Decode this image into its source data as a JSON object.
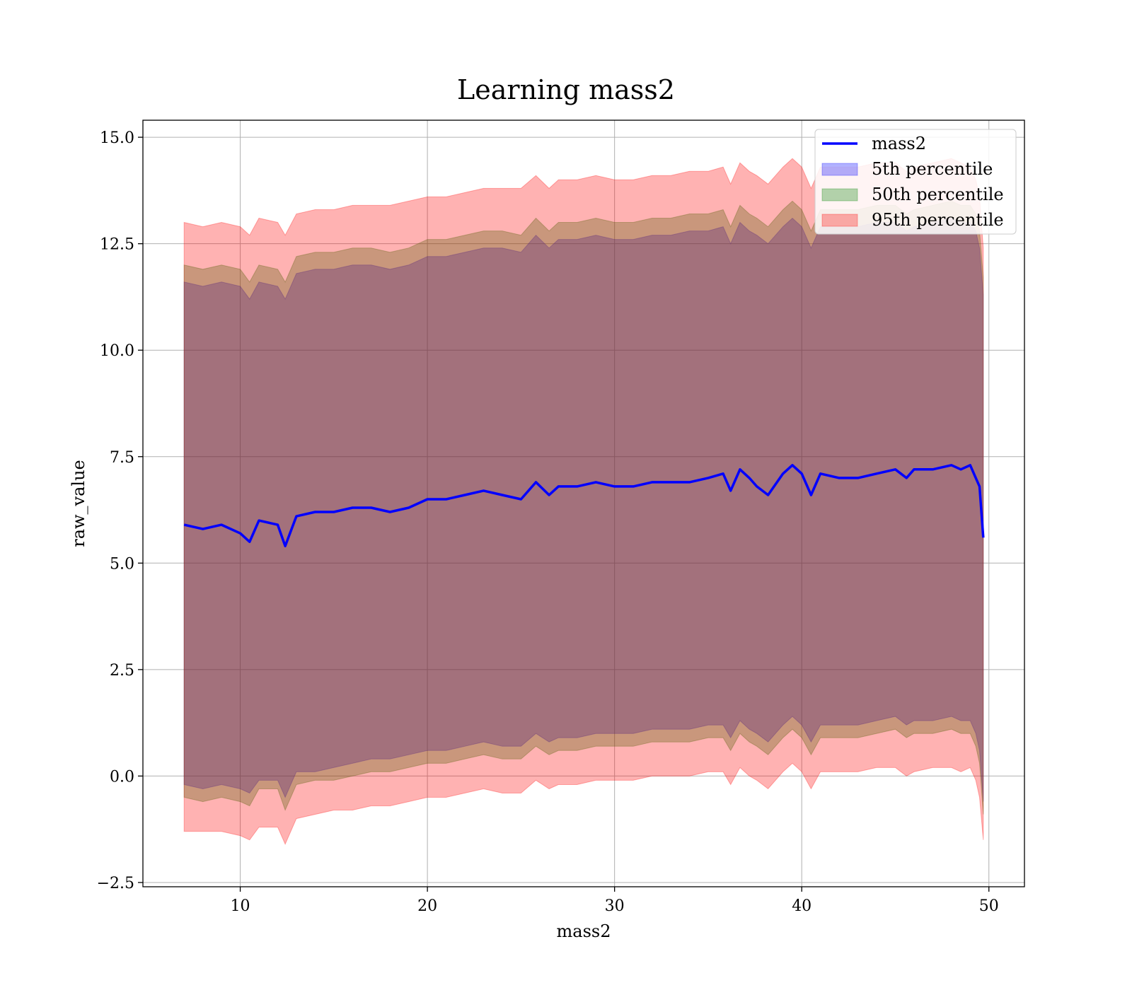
{
  "chart_data": {
    "type": "line",
    "title": "Learning mass2",
    "xlabel": "mass2",
    "ylabel": "raw_value",
    "xlim": [
      4.8,
      51.9
    ],
    "ylim": [
      -2.6,
      15.4
    ],
    "xticks": [
      10,
      20,
      30,
      40,
      50
    ],
    "yticks": [
      -2.5,
      0.0,
      2.5,
      5.0,
      7.5,
      10.0,
      12.5,
      15.0
    ],
    "ytick_labels": [
      "−2.5",
      "0.0",
      "2.5",
      "5.0",
      "7.5",
      "10.0",
      "12.5",
      "15.0"
    ],
    "grid": true,
    "legend_position": "top-right",
    "x": [
      7.0,
      8.0,
      9.0,
      10.0,
      10.5,
      11.0,
      12.0,
      12.4,
      13.0,
      14.0,
      15.0,
      16.0,
      17.0,
      18.0,
      19.0,
      20.0,
      21.0,
      22.0,
      23.0,
      24.0,
      25.0,
      25.8,
      26.5,
      27.0,
      28.0,
      29.0,
      30.0,
      31.0,
      32.0,
      33.0,
      34.0,
      35.0,
      35.8,
      36.2,
      36.7,
      37.2,
      37.6,
      38.2,
      39.0,
      39.5,
      40.0,
      40.5,
      41.0,
      42.0,
      43.0,
      44.0,
      45.0,
      45.6,
      46.0,
      47.0,
      48.0,
      48.5,
      49.0,
      49.3,
      49.5,
      49.7
    ],
    "series": [
      {
        "name": "mass2",
        "kind": "line",
        "color": "#0000ff",
        "values": [
          5.9,
          5.8,
          5.9,
          5.7,
          5.5,
          6.0,
          5.9,
          5.4,
          6.1,
          6.2,
          6.2,
          6.3,
          6.3,
          6.2,
          6.3,
          6.5,
          6.5,
          6.6,
          6.7,
          6.6,
          6.5,
          6.9,
          6.6,
          6.8,
          6.8,
          6.9,
          6.8,
          6.8,
          6.9,
          6.9,
          6.9,
          7.0,
          7.1,
          6.7,
          7.2,
          7.0,
          6.8,
          6.6,
          7.1,
          7.3,
          7.1,
          6.6,
          7.1,
          7.0,
          7.0,
          7.1,
          7.2,
          7.0,
          7.2,
          7.2,
          7.3,
          7.2,
          7.3,
          7.0,
          6.8,
          5.6
        ]
      },
      {
        "name": "5th percentile",
        "kind": "band",
        "color": "#0000ff",
        "lower": [
          -0.2,
          -0.3,
          -0.2,
          -0.3,
          -0.4,
          -0.1,
          -0.1,
          -0.5,
          0.1,
          0.1,
          0.2,
          0.3,
          0.4,
          0.4,
          0.5,
          0.6,
          0.6,
          0.7,
          0.8,
          0.7,
          0.7,
          1.0,
          0.8,
          0.9,
          0.9,
          1.0,
          1.0,
          1.0,
          1.1,
          1.1,
          1.1,
          1.2,
          1.2,
          0.9,
          1.3,
          1.1,
          1.0,
          0.8,
          1.2,
          1.4,
          1.2,
          0.8,
          1.2,
          1.2,
          1.2,
          1.3,
          1.4,
          1.2,
          1.3,
          1.3,
          1.4,
          1.3,
          1.3,
          1.0,
          0.6,
          -0.6
        ],
        "upper": [
          11.6,
          11.5,
          11.6,
          11.5,
          11.2,
          11.6,
          11.5,
          11.2,
          11.8,
          11.9,
          11.9,
          12.0,
          12.0,
          11.9,
          12.0,
          12.2,
          12.2,
          12.3,
          12.4,
          12.4,
          12.3,
          12.7,
          12.4,
          12.6,
          12.6,
          12.7,
          12.6,
          12.6,
          12.7,
          12.7,
          12.8,
          12.8,
          12.9,
          12.5,
          13.0,
          12.8,
          12.7,
          12.5,
          12.9,
          13.1,
          12.9,
          12.4,
          12.9,
          12.9,
          12.9,
          13.0,
          13.0,
          12.8,
          12.9,
          13.0,
          13.1,
          13.0,
          13.0,
          12.8,
          12.4,
          11.3
        ]
      },
      {
        "name": "50th percentile",
        "kind": "band",
        "color": "#008000",
        "lower": [
          -0.5,
          -0.6,
          -0.5,
          -0.6,
          -0.7,
          -0.3,
          -0.3,
          -0.8,
          -0.2,
          -0.1,
          -0.1,
          0.0,
          0.1,
          0.1,
          0.2,
          0.3,
          0.3,
          0.4,
          0.5,
          0.4,
          0.4,
          0.7,
          0.5,
          0.6,
          0.6,
          0.7,
          0.7,
          0.7,
          0.8,
          0.8,
          0.8,
          0.9,
          0.9,
          0.6,
          1.0,
          0.8,
          0.7,
          0.5,
          0.9,
          1.1,
          0.9,
          0.5,
          0.9,
          0.9,
          0.9,
          1.0,
          1.1,
          0.9,
          1.0,
          1.0,
          1.1,
          1.0,
          1.0,
          0.7,
          0.3,
          -0.9
        ],
        "upper": [
          12.0,
          11.9,
          12.0,
          11.9,
          11.6,
          12.0,
          11.9,
          11.6,
          12.2,
          12.3,
          12.3,
          12.4,
          12.4,
          12.3,
          12.4,
          12.6,
          12.6,
          12.7,
          12.8,
          12.8,
          12.7,
          13.1,
          12.8,
          13.0,
          13.0,
          13.1,
          13.0,
          13.0,
          13.1,
          13.1,
          13.2,
          13.2,
          13.3,
          12.9,
          13.4,
          13.2,
          13.1,
          12.9,
          13.3,
          13.5,
          13.3,
          12.8,
          13.3,
          13.3,
          13.3,
          13.4,
          13.4,
          13.2,
          13.3,
          13.4,
          13.5,
          13.4,
          13.4,
          13.2,
          12.8,
          11.7
        ]
      },
      {
        "name": "95th percentile",
        "kind": "band",
        "color": "#ff0000",
        "lower": [
          -1.3,
          -1.3,
          -1.3,
          -1.4,
          -1.5,
          -1.2,
          -1.2,
          -1.6,
          -1.0,
          -0.9,
          -0.8,
          -0.8,
          -0.7,
          -0.7,
          -0.6,
          -0.5,
          -0.5,
          -0.4,
          -0.3,
          -0.4,
          -0.4,
          -0.1,
          -0.3,
          -0.2,
          -0.2,
          -0.1,
          -0.1,
          -0.1,
          0.0,
          0.0,
          0.0,
          0.1,
          0.1,
          -0.2,
          0.2,
          0.0,
          -0.1,
          -0.3,
          0.1,
          0.3,
          0.1,
          -0.3,
          0.1,
          0.1,
          0.1,
          0.2,
          0.2,
          0.0,
          0.1,
          0.2,
          0.2,
          0.1,
          0.2,
          -0.1,
          -0.5,
          -1.5
        ],
        "upper": [
          13.0,
          12.9,
          13.0,
          12.9,
          12.7,
          13.1,
          13.0,
          12.7,
          13.2,
          13.3,
          13.3,
          13.4,
          13.4,
          13.4,
          13.5,
          13.6,
          13.6,
          13.7,
          13.8,
          13.8,
          13.8,
          14.1,
          13.8,
          14.0,
          14.0,
          14.1,
          14.0,
          14.0,
          14.1,
          14.1,
          14.2,
          14.2,
          14.3,
          13.9,
          14.4,
          14.2,
          14.1,
          13.9,
          14.3,
          14.5,
          14.3,
          13.8,
          14.3,
          14.3,
          14.3,
          14.4,
          14.4,
          14.2,
          14.3,
          14.4,
          14.5,
          14.4,
          14.3,
          14.0,
          13.6,
          12.4
        ]
      }
    ]
  }
}
